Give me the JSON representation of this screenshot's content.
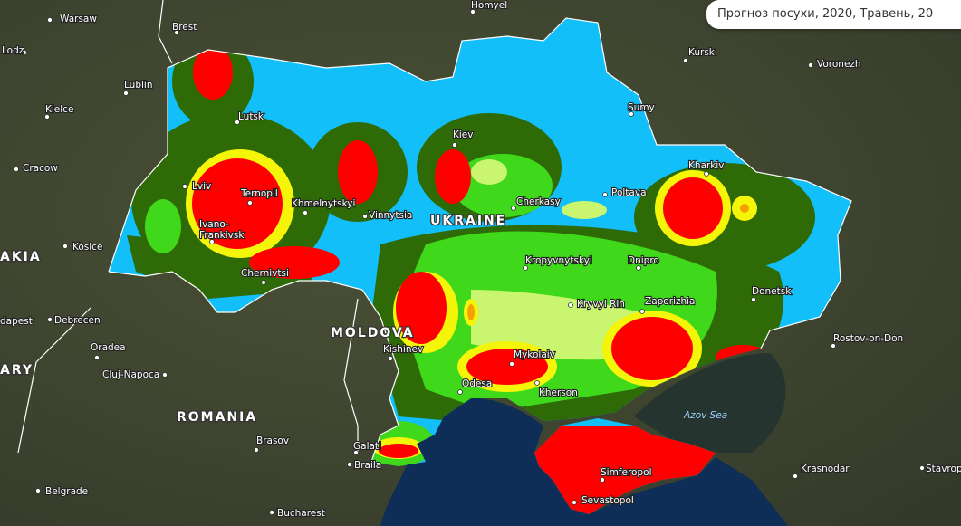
{
  "header": {
    "title": "Прогноз посухи, 2020, Травень, 20"
  },
  "cities": [
    {
      "label": "Warsaw"
    },
    {
      "label": "Lodz"
    },
    {
      "label": "Brest"
    },
    {
      "label": "Homyel"
    },
    {
      "label": "Lublin"
    },
    {
      "label": "Kielce"
    },
    {
      "label": "Cracow"
    },
    {
      "label": "Kursk"
    },
    {
      "label": "Voronezh"
    },
    {
      "label": "Sumy"
    },
    {
      "label": "Lutsk"
    },
    {
      "label": "Kiev"
    },
    {
      "label": "Kharkiv"
    },
    {
      "label": "Lviv"
    },
    {
      "label": "Ternopil"
    },
    {
      "label": "Khmelnytskyi"
    },
    {
      "label": "Vinnytsia"
    },
    {
      "label": "Cherkasy"
    },
    {
      "label": "Poltava"
    },
    {
      "label": [
        "Ivano-",
        "Frankivsk"
      ]
    },
    {
      "label": "Kosice"
    },
    {
      "label": "Kropyvnytskyi"
    },
    {
      "label": "Dnipro"
    },
    {
      "label": "Chernivtsi"
    },
    {
      "label": "Donetsk"
    },
    {
      "label": "Kryvyi Rih"
    },
    {
      "label": "Zaporizhia"
    },
    {
      "label": "Debrecen"
    },
    {
      "label": "dapest"
    },
    {
      "label": "Oradea"
    },
    {
      "label": "Cluj-Napoca"
    },
    {
      "label": "Kishinev"
    },
    {
      "label": "Mykolaiv"
    },
    {
      "label": "Rostov-on-Don"
    },
    {
      "label": "Odesa"
    },
    {
      "label": "Kherson"
    },
    {
      "label": "Brasov"
    },
    {
      "label": "Galati"
    },
    {
      "label": "Braila"
    },
    {
      "label": "Simferopol"
    },
    {
      "label": "Krasnodar"
    },
    {
      "label": "Belgrade"
    },
    {
      "label": "Sevastopol"
    },
    {
      "label": "Bucharest"
    },
    {
      "label": "Stavrop"
    }
  ],
  "countries": [
    {
      "label": "UKRAINE"
    },
    {
      "label": "MOLDOVA"
    },
    {
      "label": "ROMANIA"
    },
    {
      "label": "AKIA"
    },
    {
      "label": "ARY"
    }
  ],
  "seas": [
    {
      "label": "Azov Sea"
    }
  ]
}
